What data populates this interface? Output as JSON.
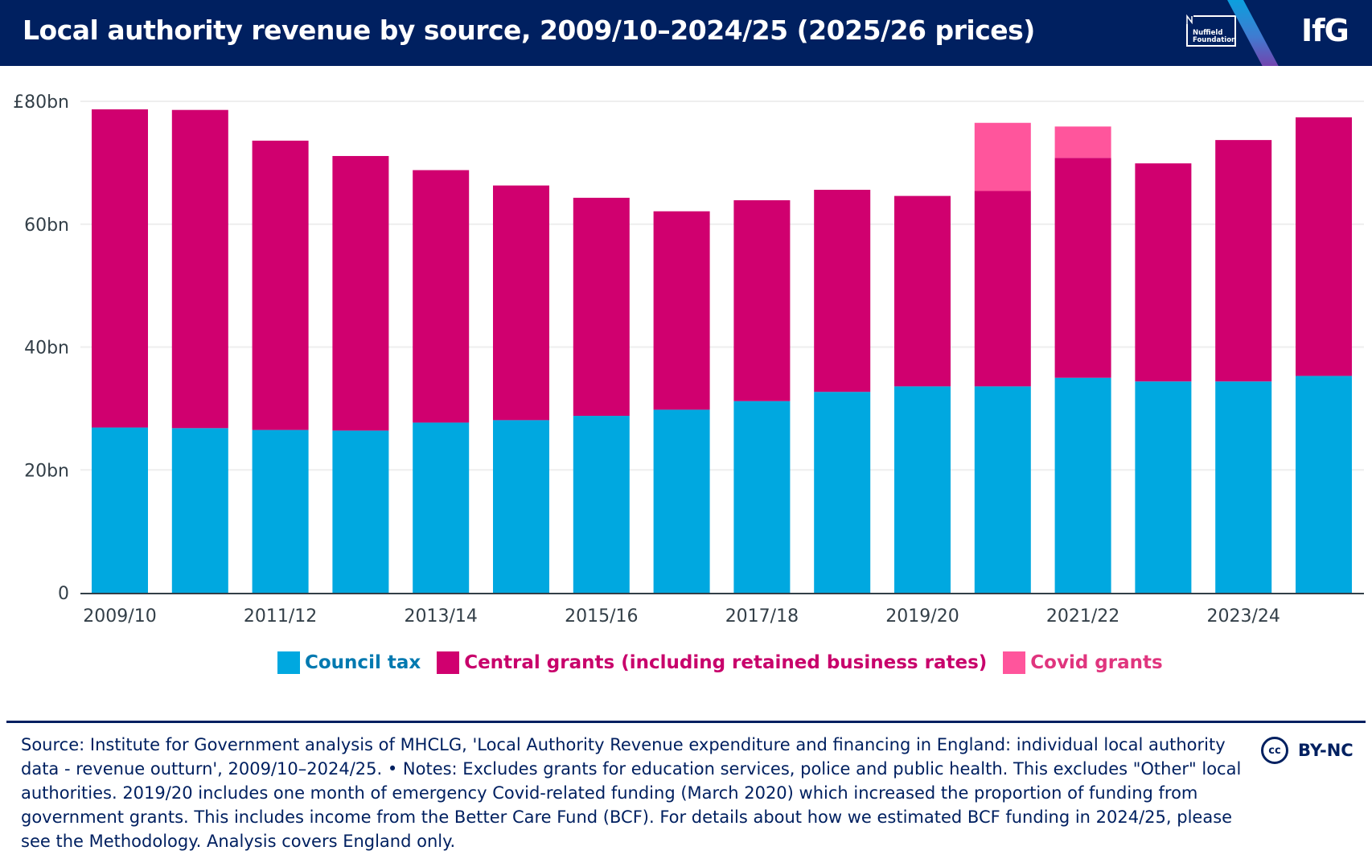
{
  "header": {
    "title": "Local authority revenue by source, 2009/10–2024/25 (2025/26 prices)",
    "partner_logo": "Nuffield Foundation",
    "partner_line1": "Nuffield",
    "partner_line2": "Foundation",
    "brand_logo": "IfG"
  },
  "legend": [
    {
      "label": "Council tax",
      "color": "#00a8e0",
      "text_color": "#0079b0"
    },
    {
      "label": "Central grants (including retained business rates)",
      "color": "#d0006f",
      "text_color": "#c8006b"
    },
    {
      "label": "Covid grants",
      "color": "#ff559c",
      "text_color": "#e0357e"
    }
  ],
  "footer": {
    "text": "Source: Institute for Government analysis of MHCLG, 'Local Authority Revenue expenditure and financing in England: individual local authority data - revenue outturn', 2009/10–2024/25. • Notes: Excludes grants for education services, police and public health. This excludes \"Other\" local authorities. 2019/20 includes one month of emergency Covid-related funding (March 2020) which increased the proportion of funding from government grants. This includes income from the Better Care Fund (BCF). For details about how we estimated BCF funding in 2024/25, please see the Methodology. Analysis covers England only.",
    "license_icon": "cc-icon",
    "license_icon_text": "cc",
    "license": "BY-NC"
  },
  "chart_data": {
    "type": "bar",
    "stacked": true,
    "title": "Local authority revenue by source, 2009/10–2024/25 (2025/26 prices)",
    "xlabel": "",
    "ylabel": "",
    "ylim": [
      0,
      80
    ],
    "yticks": [
      0,
      20,
      40,
      60,
      80
    ],
    "ytick_labels": [
      "0",
      "20bn",
      "40bn",
      "60bn",
      "£80bn"
    ],
    "grid": true,
    "legend_position": "bottom",
    "categories": [
      "2009/10",
      "2010/11",
      "2011/12",
      "2012/13",
      "2013/14",
      "2014/15",
      "2015/16",
      "2016/17",
      "2017/18",
      "2018/19",
      "2019/20",
      "2020/21",
      "2021/22",
      "2022/23",
      "2023/24",
      "2024/25"
    ],
    "xtick_labels": [
      "2009/10",
      "",
      "2011/12",
      "",
      "2013/14",
      "",
      "2015/16",
      "",
      "2017/18",
      "",
      "2019/20",
      "",
      "2021/22",
      "",
      "2023/24",
      ""
    ],
    "series": [
      {
        "name": "Council tax",
        "color": "#00a8e0",
        "values": [
          26.9,
          26.8,
          26.5,
          26.4,
          27.7,
          28.1,
          28.8,
          29.8,
          31.2,
          32.7,
          33.6,
          33.6,
          35.0,
          34.4,
          34.4,
          35.3
        ]
      },
      {
        "name": "Central grants (including retained business rates)",
        "color": "#d0006f",
        "values": [
          51.8,
          51.8,
          47.1,
          44.7,
          41.1,
          38.2,
          35.5,
          32.3,
          32.7,
          32.9,
          31.0,
          31.8,
          35.8,
          35.5,
          39.3,
          42.1
        ]
      },
      {
        "name": "Covid grants",
        "color": "#ff559c",
        "values": [
          0,
          0,
          0,
          0,
          0,
          0,
          0,
          0,
          0,
          0,
          0,
          11.1,
          5.1,
          0,
          0,
          0
        ]
      }
    ]
  }
}
